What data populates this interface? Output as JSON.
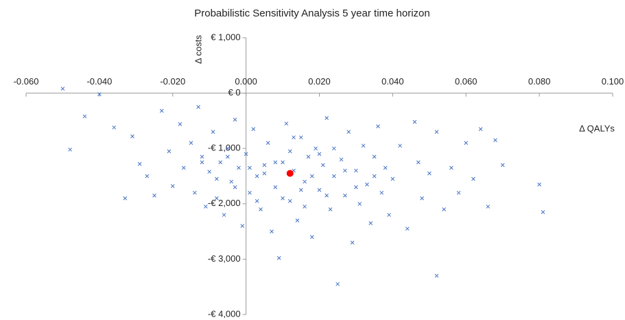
{
  "chart_data": {
    "type": "scatter",
    "title": "Probabilistic Sensitivity Analysis 5 year time horizon",
    "x_label": "Δ QALYs",
    "y_label": "Δ costs",
    "xlim": [
      -0.06,
      0.1
    ],
    "ylim": [
      -4000,
      1000
    ],
    "xticks": [
      {
        "value": -0.06,
        "label": "-0.060"
      },
      {
        "value": -0.04,
        "label": "-0.040"
      },
      {
        "value": -0.02,
        "label": "-0.020"
      },
      {
        "value": 0,
        "label": "0.000"
      },
      {
        "value": 0.02,
        "label": "0.020"
      },
      {
        "value": 0.04,
        "label": "0.040"
      },
      {
        "value": 0.06,
        "label": "0.060"
      },
      {
        "value": 0.08,
        "label": "0.080"
      },
      {
        "value": 0.1,
        "label": "0.100"
      }
    ],
    "yticks": [
      {
        "value": 1000,
        "label": "€ 1,000"
      },
      {
        "value": 0,
        "label": "€ 0"
      },
      {
        "value": -1000,
        "label": "-€ 1,000"
      },
      {
        "value": -2000,
        "label": "-€ 2,000"
      },
      {
        "value": -3000,
        "label": "-€ 3,000"
      },
      {
        "value": -4000,
        "label": "-€ 4,000"
      }
    ],
    "grid": false,
    "series": [
      {
        "color": "#4472c4",
        "marker": "x",
        "x": [
          -0.05,
          -0.04,
          -0.048,
          -0.044,
          -0.036,
          -0.033,
          -0.031,
          -0.029,
          -0.027,
          -0.025,
          -0.023,
          -0.021,
          -0.02,
          -0.018,
          -0.017,
          -0.015,
          -0.014,
          -0.013,
          -0.012,
          -0.011,
          -0.01,
          -0.009,
          -0.008,
          -0.007,
          -0.006,
          -0.005,
          -0.004,
          -0.003,
          -0.002,
          -0.001,
          0.0,
          0.001,
          0.002,
          0.003,
          0.004,
          0.005,
          0.006,
          0.007,
          0.008,
          0.009,
          0.01,
          0.011,
          0.012,
          0.013,
          0.014,
          0.015,
          0.016,
          0.017,
          0.018,
          0.019,
          0.02,
          0.021,
          0.022,
          0.023,
          0.024,
          0.025,
          0.026,
          0.027,
          0.028,
          0.029,
          0.03,
          0.031,
          0.032,
          0.033,
          0.034,
          0.035,
          0.036,
          0.037,
          0.038,
          0.039,
          0.04,
          0.042,
          0.044,
          0.046,
          0.047,
          0.048,
          0.05,
          0.052,
          0.052,
          0.054,
          0.056,
          0.058,
          0.06,
          0.062,
          0.064,
          0.066,
          0.068,
          0.07,
          0.08,
          0.081,
          0.005,
          0.012,
          -0.003,
          0.018,
          0.008,
          0.022,
          0.001,
          0.015,
          0.027,
          -0.008,
          0.01,
          0.02,
          -0.012,
          0.03,
          0.003,
          0.016,
          0.024,
          -0.005,
          0.013,
          0.035
        ],
        "values": [
          80,
          -20,
          -1020,
          -420,
          -620,
          -1900,
          -780,
          -1280,
          -1500,
          -1850,
          -320,
          -1050,
          -1680,
          -560,
          -1350,
          -900,
          -1800,
          -250,
          -1150,
          -2050,
          -1420,
          -700,
          -1900,
          -1250,
          -2200,
          -1000,
          -1600,
          -480,
          -1350,
          -2400,
          -1100,
          -1800,
          -650,
          -1500,
          -2100,
          -1300,
          -900,
          -2500,
          -1700,
          -2980,
          -1250,
          -550,
          -1950,
          -1400,
          -2300,
          -800,
          -1600,
          -1150,
          -2600,
          -1000,
          -1750,
          -1300,
          -450,
          -2100,
          -1500,
          -3450,
          -1200,
          -1850,
          -700,
          -2700,
          -1400,
          -2000,
          -950,
          -1650,
          -2350,
          -1150,
          -600,
          -1800,
          -1350,
          -2200,
          -1550,
          -950,
          -2450,
          -520,
          -1250,
          -1900,
          -1450,
          -3300,
          -700,
          -2100,
          -1350,
          -1800,
          -900,
          -1550,
          -650,
          -2050,
          -850,
          -1300,
          -1650,
          -2150,
          -1450,
          -1050,
          -1700,
          -1500,
          -1250,
          -1850,
          -1350,
          -1750,
          -1400,
          -1550,
          -1900,
          -1100,
          -1250,
          -1700,
          -1950,
          -2050,
          -1000,
          -1150,
          -800,
          -1500
        ]
      },
      {
        "color": "#ff0000",
        "marker": "dot",
        "x": [
          0.012
        ],
        "values": [
          -1450
        ]
      }
    ]
  }
}
